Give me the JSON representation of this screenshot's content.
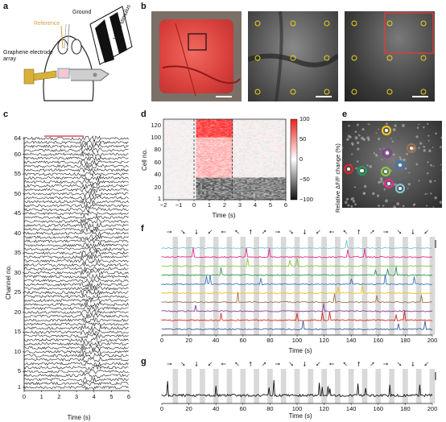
{
  "panels": {
    "a": "a",
    "b": "b",
    "c": "c",
    "d": "d",
    "e": "e",
    "f": "f",
    "g": "g"
  },
  "panel_a": {
    "reference": "Reference",
    "ground": "Ground",
    "visual_stimulus": "Visual stimulus",
    "array": "Graphene electrode array"
  },
  "panel_c": {
    "xlabel": "Time (s)",
    "ylabel": "Channel no.",
    "xticks": [
      "0",
      "1",
      "2",
      "3",
      "4",
      "5",
      "6"
    ],
    "yticks": [
      "1",
      "5",
      "10",
      "15",
      "20",
      "25",
      "30",
      "35",
      "40",
      "45",
      "50",
      "55",
      "60",
      "64"
    ]
  },
  "panel_d": {
    "ylabel": "Cell no.",
    "xlabel": "Time (s)",
    "xticks": [
      "−2",
      "−1",
      "0",
      "1",
      "2",
      "3",
      "4",
      "5",
      "6"
    ],
    "yticks": [
      "1",
      "20",
      "40",
      "60",
      "80",
      "100",
      "120"
    ],
    "cbar_label": "Relative ΔF/F change (%)",
    "cbar_ticks": [
      "100",
      "50",
      "0",
      "−50",
      "−100"
    ]
  },
  "panel_f": {
    "xlabel": "Time (s)",
    "xticks": [
      "0",
      "20",
      "40",
      "60",
      "80",
      "100",
      "120",
      "140",
      "160",
      "180",
      "200"
    ],
    "trace_colors": [
      "#7dc3d8",
      "#e0308e",
      "#8ac640",
      "#2a9a4a",
      "#3f76b8",
      "#f2c31b",
      "#a0724a",
      "#8a3f9a",
      "#d8282c",
      "#3c5aa0"
    ]
  },
  "panel_g": {
    "xlabel": "Time (s)",
    "xticks": [
      "0",
      "20",
      "40",
      "60",
      "80",
      "100",
      "120",
      "140",
      "160",
      "180",
      "200"
    ]
  },
  "chart_data": [
    {
      "type": "line",
      "panel": "c",
      "xlabel": "Time (s)",
      "ylabel": "Channel no.",
      "x_range": [
        0,
        6
      ],
      "y_range": [
        1,
        64
      ],
      "note_series": 64
    },
    {
      "type": "heatmap",
      "panel": "d",
      "xlabel": "Time (s)",
      "ylabel": "Cell no.",
      "x_range": [
        -2,
        6
      ],
      "y_range": [
        1,
        130
      ],
      "colorbar_range": [
        -100,
        100
      ],
      "event_lines_x": [
        0,
        2.5
      ]
    },
    {
      "type": "line",
      "panel": "f",
      "xlabel": "Time (s)",
      "x_range": [
        0,
        200
      ],
      "n_series": 10
    },
    {
      "type": "line",
      "panel": "g",
      "xlabel": "Time (s)",
      "x_range": [
        0,
        200
      ],
      "n_series": 1
    }
  ]
}
